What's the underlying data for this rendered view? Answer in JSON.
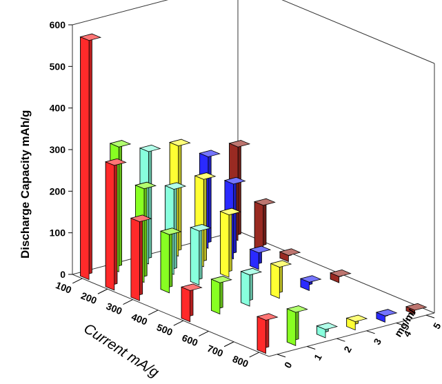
{
  "chart_data": {
    "type": "bar3d",
    "title": "",
    "ylabel": "Discharge Capacity mAh/g",
    "xlabel": "Current mA/g",
    "zlabel": "mg/ml",
    "ylim": [
      0,
      600
    ],
    "yticks": [
      "0",
      "100",
      "200",
      "300",
      "400",
      "500",
      "600"
    ],
    "x_categories": [
      "100",
      "200",
      "300",
      "400",
      "500",
      "600",
      "700",
      "800"
    ],
    "z_categories": [
      "0",
      "1",
      "2",
      "3",
      "4",
      "5"
    ],
    "series": [
      {
        "z": 0,
        "color": "#ff2a2a",
        "points": [
          [
            100,
            575
          ],
          [
            200,
            300
          ],
          [
            300,
            190
          ],
          [
            500,
            75
          ],
          [
            800,
            80
          ]
        ]
      },
      {
        "z": 1,
        "color": "#88ff22",
        "points": [
          [
            100,
            300
          ],
          [
            200,
            225
          ],
          [
            300,
            140
          ],
          [
            500,
            75
          ],
          [
            800,
            80
          ]
        ]
      },
      {
        "z": 2,
        "color": "#88ffdd",
        "points": [
          [
            100,
            270
          ],
          [
            200,
            205
          ],
          [
            300,
            130
          ],
          [
            500,
            75
          ],
          [
            800,
            20
          ]
        ]
      },
      {
        "z": 3,
        "color": "#ffff33",
        "points": [
          [
            100,
            265
          ],
          [
            200,
            210
          ],
          [
            300,
            150
          ],
          [
            500,
            75
          ],
          [
            800,
            20
          ]
        ]
      },
      {
        "z": 4,
        "color": "#2a2aff",
        "points": [
          [
            100,
            220
          ],
          [
            200,
            180
          ],
          [
            300,
            40
          ],
          [
            500,
            20
          ],
          [
            800,
            15
          ]
        ]
      },
      {
        "z": 5,
        "color": "#992a22",
        "points": [
          [
            100,
            225
          ],
          [
            200,
            110
          ],
          [
            300,
            15
          ],
          [
            500,
            15
          ],
          [
            800,
            10
          ]
        ]
      }
    ]
  }
}
